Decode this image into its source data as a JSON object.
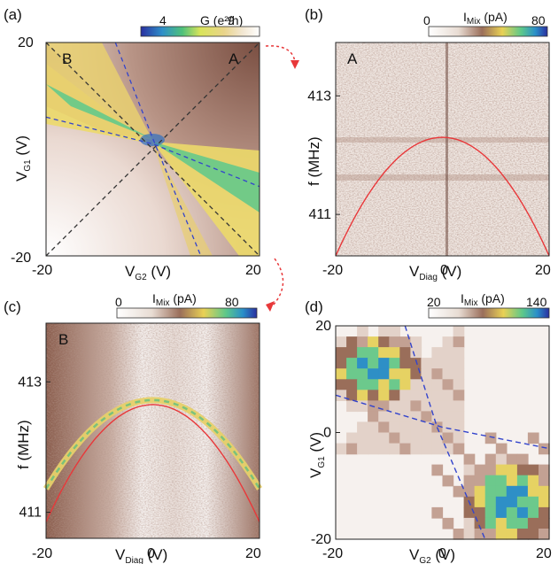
{
  "chart_data": [
    {
      "panel": "(a)",
      "type": "heatmap",
      "corner_labels": [
        "B",
        "A"
      ],
      "colorbar": {
        "label": "G (e²/h)",
        "min": "4",
        "max": "9"
      },
      "xlabel": {
        "main": "V",
        "sub": "G2",
        "unit": " (V)"
      },
      "ylabel": {
        "main": "V",
        "sub": "G1",
        "unit": " (V)"
      },
      "xlim": [
        -20,
        20
      ],
      "ylim": [
        -20,
        20
      ],
      "x_ticks": [
        "-20",
        "20"
      ],
      "y_ticks": [
        "20",
        "-20"
      ],
      "dashed_lines": [
        {
          "points": [
            [
              -20,
              -20
            ],
            [
              20,
              20
            ]
          ],
          "color": "#333333"
        },
        {
          "points": [
            [
              -20,
              20
            ],
            [
              20,
              -20
            ]
          ],
          "color": "#333333"
        },
        {
          "points": [
            [
              -7,
              20
            ],
            [
              0,
              2
            ],
            [
              9,
              -20
            ]
          ],
          "color": "#3344cc"
        },
        {
          "points": [
            [
              -20,
              6
            ],
            [
              0,
              1
            ],
            [
              20,
              -7
            ]
          ],
          "color": "#3344cc"
        }
      ]
    },
    {
      "panel": "(b)",
      "type": "heatmap",
      "corner_label": "A",
      "colorbar": {
        "label_main": "I",
        "label_sub": "Mix",
        "label_unit": " (pA)",
        "min": "0",
        "max": "80"
      },
      "xlabel": {
        "main": "V",
        "sub": "Diag",
        "unit": " (V)"
      },
      "ylabel": "f (MHz)",
      "xlim": [
        -20,
        20
      ],
      "ylim": [
        410.3,
        413.9
      ],
      "x_ticks": [
        "-20",
        "0",
        "20"
      ],
      "y_ticks": [
        {
          "value": 413,
          "label": "413"
        },
        {
          "value": 411,
          "label": "411"
        }
      ],
      "fit_curve": {
        "type": "parabola",
        "vertex": [
          0,
          412.3
        ],
        "endpoints_y": 410.3,
        "color": "#e8383a"
      }
    },
    {
      "panel": "(c)",
      "type": "heatmap",
      "corner_label": "B",
      "colorbar": {
        "label_main": "I",
        "label_sub": "Mix",
        "label_unit": " (pA)",
        "min": "0",
        "max": "80"
      },
      "xlabel": {
        "main": "V",
        "sub": "Diag",
        "unit": " (V)"
      },
      "ylabel": "f (MHz)",
      "xlim": [
        -20,
        20
      ],
      "ylim": [
        410.6,
        413.9
      ],
      "x_ticks": [
        "-20",
        "0",
        "20"
      ],
      "y_ticks": [
        {
          "value": 413,
          "label": "413"
        },
        {
          "value": 411,
          "label": "411"
        }
      ],
      "fit_curve": {
        "type": "parabola",
        "vertex": [
          0,
          412.65
        ],
        "endpoints_y": 410.85,
        "color": "#e8383a"
      }
    },
    {
      "panel": "(d)",
      "type": "heatmap",
      "colorbar": {
        "label_main": "I",
        "label_sub": "Mix",
        "label_unit": " (pA)",
        "min": "20",
        "max": "140"
      },
      "xlabel": {
        "main": "V",
        "sub": "G2",
        "unit": " (V)"
      },
      "ylabel": {
        "main": "V",
        "sub": "G1",
        "unit": " (V)"
      },
      "xlim": [
        -20,
        20
      ],
      "ylim": [
        -20,
        20
      ],
      "x_ticks": [
        "-20",
        "0",
        "20"
      ],
      "y_ticks": [
        {
          "value": 20,
          "label": "20"
        },
        {
          "value": 0,
          "label": "0"
        },
        {
          "value": -20,
          "label": "-20"
        }
      ],
      "dashed_lines": [
        {
          "points": [
            [
              -7,
              20
            ],
            [
              -1,
              1
            ],
            [
              8,
              -20
            ]
          ],
          "color": "#3344cc"
        },
        {
          "points": [
            [
              -20,
              7
            ],
            [
              0,
              1
            ],
            [
              20,
              -3
            ]
          ],
          "color": "#3344cc"
        }
      ]
    }
  ]
}
